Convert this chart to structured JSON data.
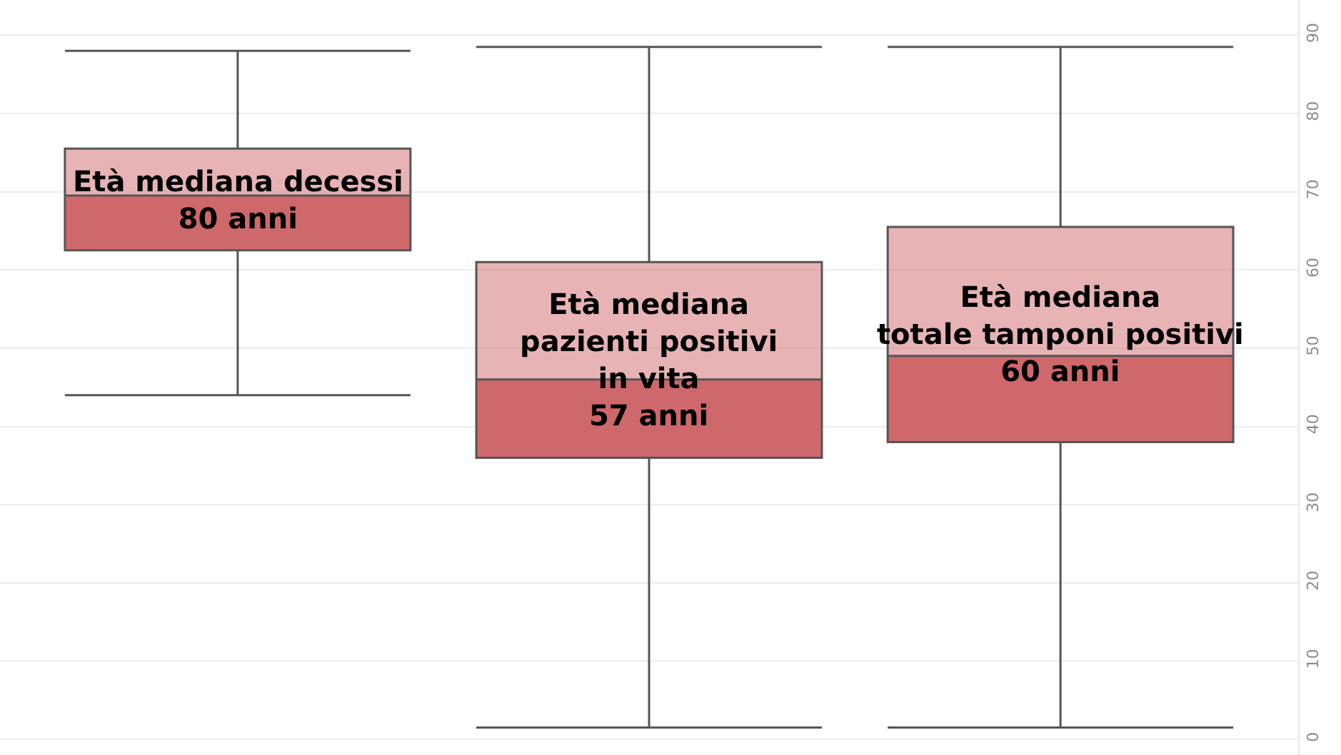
{
  "chart_data": {
    "type": "box",
    "categories": [
      null,
      null,
      null
    ],
    "series": [
      {
        "color": "#cf686a",
        "boxes": [
          {
            "low": 44,
            "q1": 62.5,
            "median": 69.5,
            "q3": 75.5,
            "high": 88
          },
          {
            "low": 1.5,
            "q1": 36,
            "median": 46,
            "q3": 61,
            "high": 88.5
          },
          {
            "low": 1.5,
            "q1": 38,
            "median": 49,
            "q3": 65.5,
            "high": 88.5
          }
        ]
      }
    ],
    "ylim": [
      -2,
      94.5
    ],
    "yticks": [
      0,
      10,
      20,
      30,
      40,
      50,
      60,
      70,
      80,
      90
    ],
    "grid": true,
    "tick_labels": "y",
    "annotations": [
      "Età mediana decessi\n80 anni",
      "Età mediana\npazienti positivi\nin vita\n57 anni",
      "Età mediana\ntotale tamponi positivi\n60 anni"
    ]
  }
}
